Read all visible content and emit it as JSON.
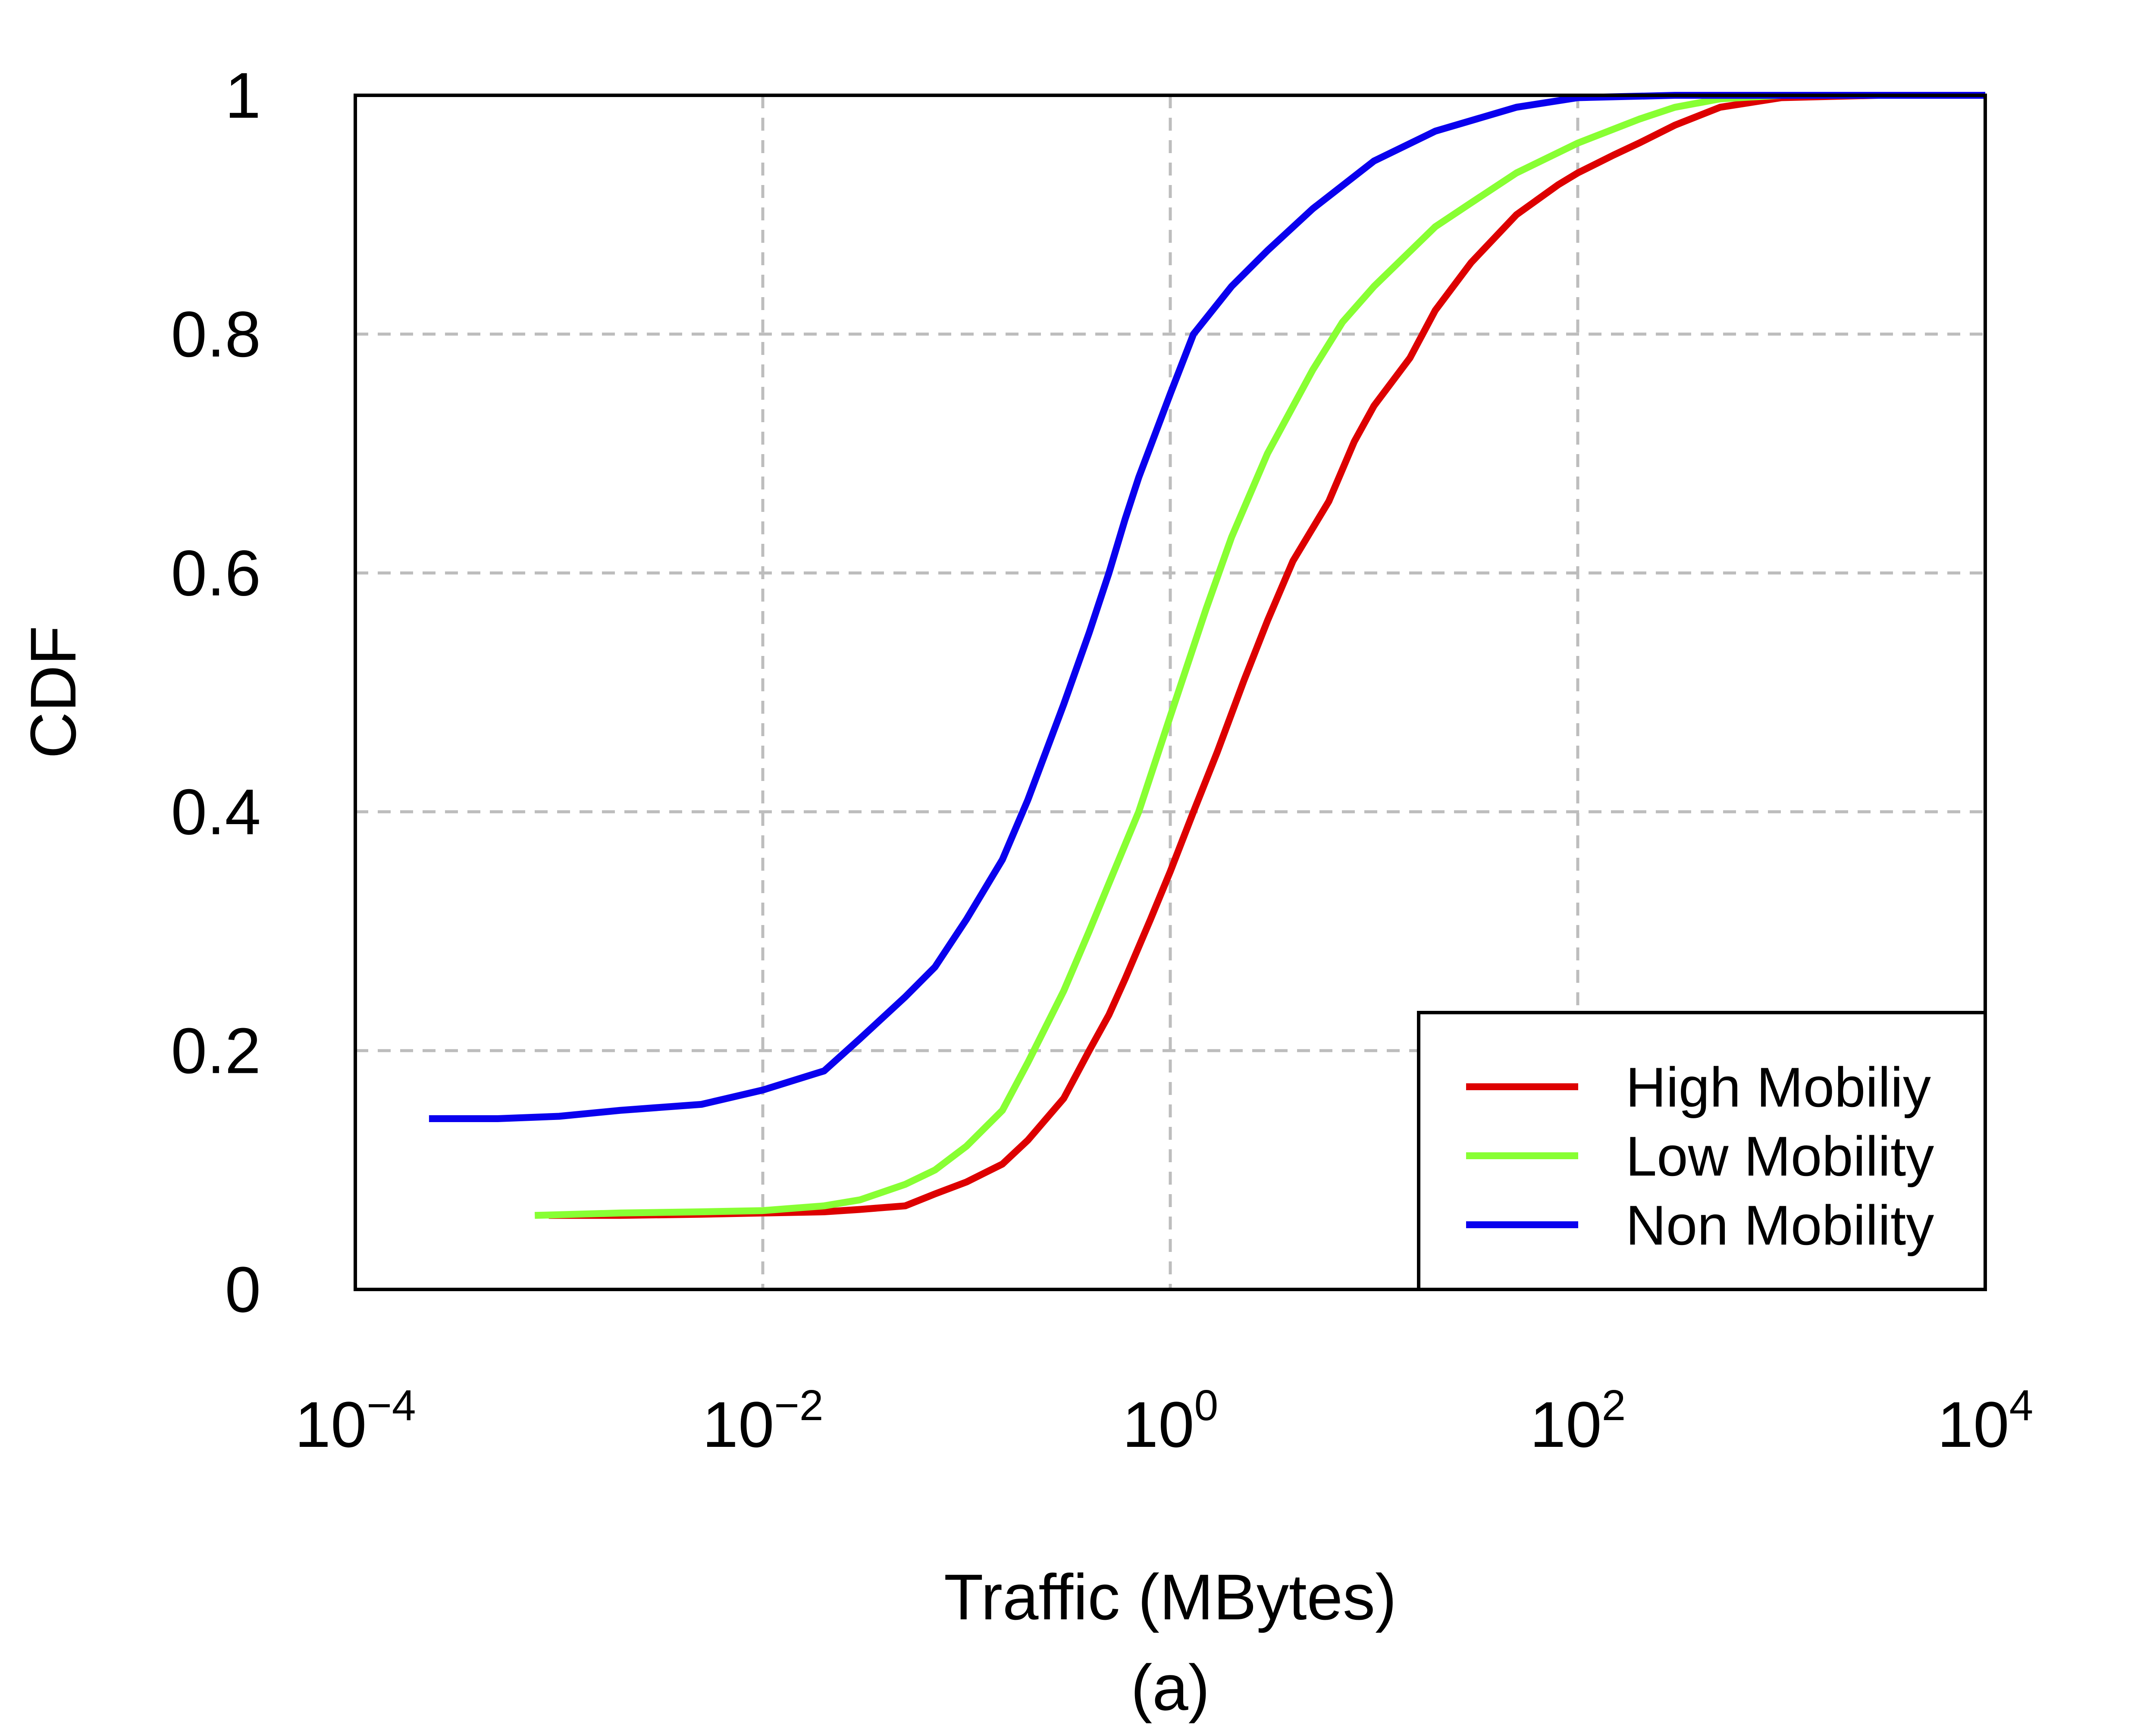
{
  "chart_data": {
    "type": "line",
    "title": "",
    "xlabel": "Traffic (MBytes)",
    "ylabel": "CDF",
    "caption": "(a)",
    "x_scale": "log",
    "xlim": [
      0.0001,
      10000
    ],
    "ylim": [
      0,
      1
    ],
    "grid": true,
    "legend_position": "bottom-right",
    "x_ticks": [
      {
        "value": 0.0001,
        "base": "10",
        "exp": "−4"
      },
      {
        "value": 0.01,
        "base": "10",
        "exp": "−2"
      },
      {
        "value": 1,
        "base": "10",
        "exp": "0"
      },
      {
        "value": 100,
        "base": "10",
        "exp": "2"
      },
      {
        "value": 10000,
        "base": "10",
        "exp": "4"
      }
    ],
    "y_ticks": [
      {
        "value": 0,
        "label": "0"
      },
      {
        "value": 0.2,
        "label": "0.2"
      },
      {
        "value": 0.4,
        "label": "0.4"
      },
      {
        "value": 0.6,
        "label": "0.6"
      },
      {
        "value": 0.8,
        "label": "0.8"
      },
      {
        "value": 1,
        "label": "1"
      }
    ],
    "series": [
      {
        "name": "High Mobiliy",
        "color": "#dd0000",
        "points": [
          [
            0.00089,
            0.062
          ],
          [
            0.002,
            0.062
          ],
          [
            0.005,
            0.063
          ],
          [
            0.01,
            0.064
          ],
          [
            0.02,
            0.065
          ],
          [
            0.03,
            0.067
          ],
          [
            0.05,
            0.07
          ],
          [
            0.07,
            0.08
          ],
          [
            0.1,
            0.09
          ],
          [
            0.15,
            0.105
          ],
          [
            0.2,
            0.125
          ],
          [
            0.3,
            0.16
          ],
          [
            0.4,
            0.2
          ],
          [
            0.5,
            0.23
          ],
          [
            0.6,
            0.26
          ],
          [
            0.8,
            0.31
          ],
          [
            1.0,
            0.35
          ],
          [
            1.3,
            0.4
          ],
          [
            1.7,
            0.45
          ],
          [
            2.3,
            0.51
          ],
          [
            3.0,
            0.56
          ],
          [
            4.0,
            0.61
          ],
          [
            6.0,
            0.66
          ],
          [
            8.0,
            0.71
          ],
          [
            10.0,
            0.74
          ],
          [
            15.0,
            0.78
          ],
          [
            20.0,
            0.82
          ],
          [
            30.0,
            0.86
          ],
          [
            50.0,
            0.9
          ],
          [
            80.0,
            0.925
          ],
          [
            100.0,
            0.935
          ],
          [
            150.0,
            0.95
          ],
          [
            200.0,
            0.96
          ],
          [
            300.0,
            0.975
          ],
          [
            500.0,
            0.99
          ],
          [
            1000.0,
            0.998
          ],
          [
            3000.0,
            1.0
          ],
          [
            10000.0,
            1.0
          ]
        ]
      },
      {
        "name": "Low Mobility",
        "color": "#88ff33",
        "points": [
          [
            0.00076,
            0.062
          ],
          [
            0.002,
            0.064
          ],
          [
            0.005,
            0.065
          ],
          [
            0.01,
            0.066
          ],
          [
            0.02,
            0.07
          ],
          [
            0.03,
            0.075
          ],
          [
            0.05,
            0.088
          ],
          [
            0.07,
            0.1
          ],
          [
            0.1,
            0.12
          ],
          [
            0.15,
            0.15
          ],
          [
            0.2,
            0.19
          ],
          [
            0.3,
            0.25
          ],
          [
            0.4,
            0.3
          ],
          [
            0.5,
            0.34
          ],
          [
            0.7,
            0.4
          ],
          [
            1.0,
            0.48
          ],
          [
            1.5,
            0.57
          ],
          [
            2.0,
            0.63
          ],
          [
            3.0,
            0.7
          ],
          [
            5.0,
            0.77
          ],
          [
            7.0,
            0.81
          ],
          [
            10.0,
            0.84
          ],
          [
            20.0,
            0.89
          ],
          [
            30.0,
            0.91
          ],
          [
            50.0,
            0.935
          ],
          [
            100.0,
            0.96
          ],
          [
            200.0,
            0.98
          ],
          [
            300.0,
            0.99
          ],
          [
            500.0,
            0.997
          ],
          [
            1000.0,
            1.0
          ],
          [
            10000.0,
            1.0
          ]
        ]
      },
      {
        "name": "Non Mobility",
        "color": "#0a00ee",
        "points": [
          [
            0.00023,
            0.143
          ],
          [
            0.0005,
            0.143
          ],
          [
            0.001,
            0.145
          ],
          [
            0.002,
            0.15
          ],
          [
            0.005,
            0.155
          ],
          [
            0.01,
            0.167
          ],
          [
            0.02,
            0.183
          ],
          [
            0.03,
            0.21
          ],
          [
            0.05,
            0.245
          ],
          [
            0.07,
            0.27
          ],
          [
            0.1,
            0.31
          ],
          [
            0.15,
            0.36
          ],
          [
            0.2,
            0.41
          ],
          [
            0.3,
            0.49
          ],
          [
            0.4,
            0.55
          ],
          [
            0.5,
            0.6
          ],
          [
            0.6,
            0.645
          ],
          [
            0.7,
            0.68
          ],
          [
            1.0,
            0.75
          ],
          [
            1.3,
            0.8
          ],
          [
            2.0,
            0.84
          ],
          [
            3.0,
            0.87
          ],
          [
            5.0,
            0.905
          ],
          [
            10.0,
            0.945
          ],
          [
            20.0,
            0.97
          ],
          [
            50.0,
            0.99
          ],
          [
            100.0,
            0.998
          ],
          [
            300.0,
            1.0
          ],
          [
            10000.0,
            1.0
          ]
        ]
      }
    ]
  }
}
